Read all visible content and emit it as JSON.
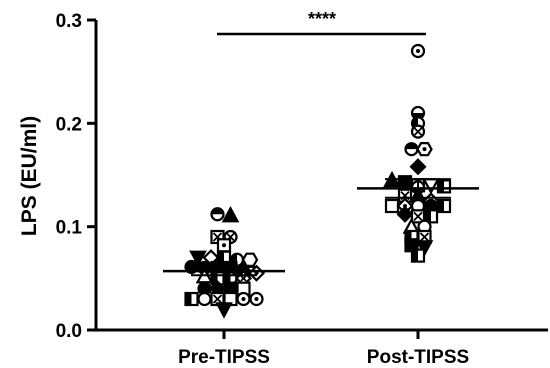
{
  "chart_data": {
    "type": "scatter",
    "title": "",
    "xlabel": "",
    "ylabel": "LPS (EU/ml)",
    "ylim": [
      0.0,
      0.3
    ],
    "yticks": [
      {
        "value": 0.0,
        "label": "0.0"
      },
      {
        "value": 0.1,
        "label": "0.1"
      },
      {
        "value": 0.2,
        "label": "0.2"
      },
      {
        "value": 0.3,
        "label": "0.3"
      }
    ],
    "categories": [
      "Pre-TIPSS",
      "Post-TIPSS"
    ],
    "series": [
      {
        "category": "Pre-TIPSS",
        "mean": 0.057,
        "error": 0.004,
        "points": [
          {
            "y": 0.112,
            "marker": "half-circle-top"
          },
          {
            "y": 0.111,
            "marker": "triangle"
          },
          {
            "y": 0.09,
            "marker": "square-x"
          },
          {
            "y": 0.09,
            "marker": "circle-x"
          },
          {
            "y": 0.082,
            "marker": "square-dot"
          },
          {
            "y": 0.07,
            "marker": "triangle-down"
          },
          {
            "y": 0.07,
            "marker": "diamond-open"
          },
          {
            "y": 0.07,
            "marker": "square-half"
          },
          {
            "y": 0.068,
            "marker": "half-circle-left"
          },
          {
            "y": 0.068,
            "marker": "hexagon-open"
          },
          {
            "y": 0.061,
            "marker": "circle-filled"
          },
          {
            "y": 0.06,
            "marker": "circle-filled"
          },
          {
            "y": 0.06,
            "marker": "square-filled"
          },
          {
            "y": 0.06,
            "marker": "square-filled"
          },
          {
            "y": 0.057,
            "marker": "diamond-filled"
          },
          {
            "y": 0.055,
            "marker": "diamond-dot"
          },
          {
            "y": 0.052,
            "marker": "triangle-open"
          },
          {
            "y": 0.05,
            "marker": "square-half"
          },
          {
            "y": 0.05,
            "marker": "half-circle-left"
          },
          {
            "y": 0.05,
            "marker": "diamond-x"
          },
          {
            "y": 0.04,
            "marker": "circle-filled"
          },
          {
            "y": 0.04,
            "marker": "diamond-filled"
          },
          {
            "y": 0.04,
            "marker": "square-filled"
          },
          {
            "y": 0.04,
            "marker": "square-open"
          },
          {
            "y": 0.03,
            "marker": "square-half"
          },
          {
            "y": 0.03,
            "marker": "circle-open"
          },
          {
            "y": 0.03,
            "marker": "square-x"
          },
          {
            "y": 0.03,
            "marker": "square-open"
          },
          {
            "y": 0.03,
            "marker": "circle-dot"
          },
          {
            "y": 0.03,
            "marker": "circle-dot"
          },
          {
            "y": 0.02,
            "marker": "triangle-down"
          }
        ]
      },
      {
        "category": "Post-TIPSS",
        "mean": 0.137,
        "error": 0.009,
        "points": [
          {
            "y": 0.27,
            "marker": "circle-dot"
          },
          {
            "y": 0.21,
            "marker": "half-circle-bottom"
          },
          {
            "y": 0.2,
            "marker": "half-circle-left"
          },
          {
            "y": 0.192,
            "marker": "circle-x"
          },
          {
            "y": 0.175,
            "marker": "half-circle-top"
          },
          {
            "y": 0.175,
            "marker": "hexagon-dot"
          },
          {
            "y": 0.158,
            "marker": "diamond-filled"
          },
          {
            "y": 0.145,
            "marker": "triangle"
          },
          {
            "y": 0.143,
            "marker": "square-filled"
          },
          {
            "y": 0.14,
            "marker": "square-open"
          },
          {
            "y": 0.14,
            "marker": "triangle-down-open"
          },
          {
            "y": 0.139,
            "marker": "square-half"
          },
          {
            "y": 0.138,
            "marker": "half-circle-bottom"
          },
          {
            "y": 0.13,
            "marker": "square-x"
          },
          {
            "y": 0.13,
            "marker": "triangle-filled"
          },
          {
            "y": 0.125,
            "marker": "diamond-open"
          },
          {
            "y": 0.12,
            "marker": "square-open"
          },
          {
            "y": 0.12,
            "marker": "diamond-dot"
          },
          {
            "y": 0.12,
            "marker": "circle-open"
          },
          {
            "y": 0.12,
            "marker": "circle-filled"
          },
          {
            "y": 0.12,
            "marker": "square-half"
          },
          {
            "y": 0.112,
            "marker": "diamond-filled"
          },
          {
            "y": 0.11,
            "marker": "square-x"
          },
          {
            "y": 0.11,
            "marker": "square-half"
          },
          {
            "y": 0.1,
            "marker": "triangle-open"
          },
          {
            "y": 0.1,
            "marker": "circle-open"
          },
          {
            "y": 0.09,
            "marker": "square-half"
          },
          {
            "y": 0.09,
            "marker": "square-x"
          },
          {
            "y": 0.082,
            "marker": "square-filled"
          },
          {
            "y": 0.08,
            "marker": "triangle-down"
          },
          {
            "y": 0.072,
            "marker": "square-half"
          }
        ]
      }
    ],
    "significance": {
      "label": "****",
      "between": [
        "Pre-TIPSS",
        "Post-TIPSS"
      ]
    },
    "grid": false,
    "legend": "none"
  }
}
